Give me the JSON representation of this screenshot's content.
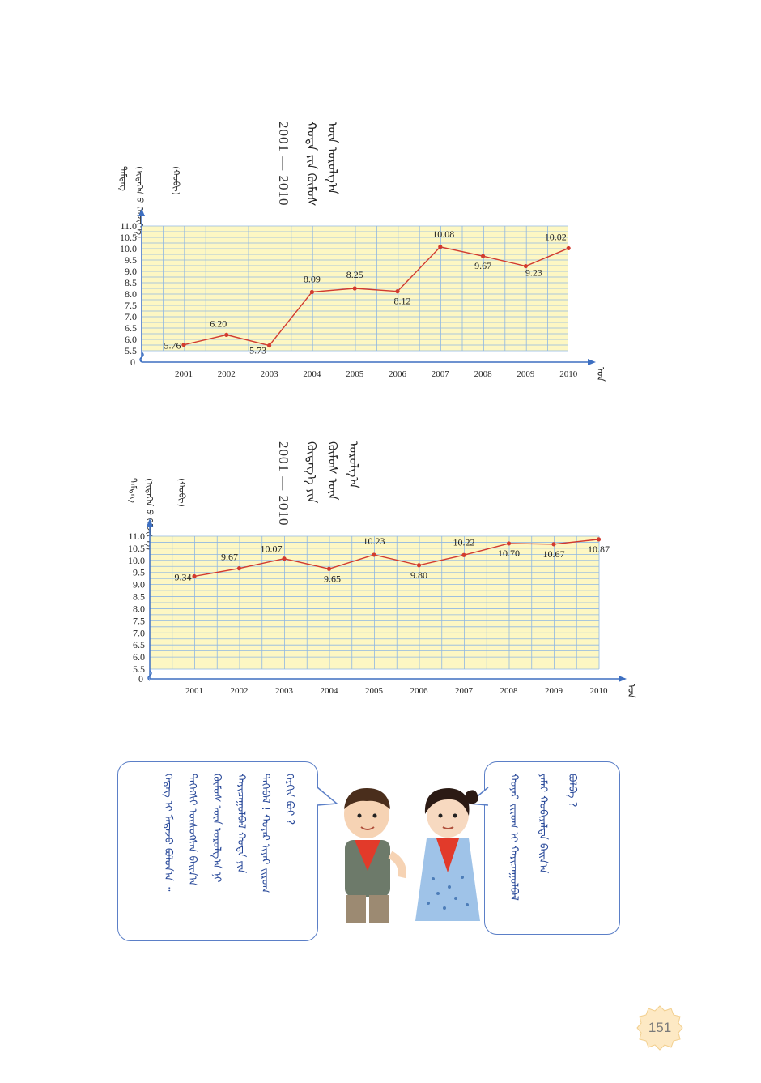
{
  "chart_data": [
    {
      "type": "line",
      "title": "ᠬᠣᠲᠠ ᠶᠢᠨ ᠬᠦᠮᠦᠰ ᠦᠨ ᠤᠷᠤᠯᠭ᠎ᠠ",
      "title_years": "2001 — 2010",
      "ylabel": "ᠲᠡᠮᠳᠡᠭ",
      "ylabel_unit": "(ᠢᠳᠡᠭᠡᠨ ᠤ᠋ ᠬᠡᠮᠵᠢᠶ᠎ᠡ)",
      "ylabel_unit2": "(ᠬᠤᠪᠢ)",
      "xlabel": "ᠣᠨ",
      "x": [
        "2001",
        "2002",
        "2003",
        "2004",
        "2005",
        "2006",
        "2007",
        "2008",
        "2009",
        "2010"
      ],
      "values": [
        5.76,
        6.2,
        5.73,
        8.09,
        8.25,
        8.12,
        10.08,
        9.67,
        9.23,
        10.02
      ],
      "labels": [
        "5.76",
        "6.20",
        "5.73",
        "8.09",
        "8.25",
        "8.12",
        "10.08",
        "9.67",
        "9.23",
        "10.02"
      ],
      "yticks": [
        "11.0",
        "10.5",
        "10.0",
        "9.5",
        "9.0",
        "8.5",
        "8.0",
        "7.5",
        "7.0",
        "6.5",
        "6.0",
        "5.5"
      ],
      "ylim": [
        5.5,
        11.0
      ],
      "grid": true,
      "origin_label": "0"
    },
    {
      "type": "line",
      "title": "ᠬᠦᠳᠡᠭ᠎ᠡ ᠶᠢᠨ ᠬᠦᠮᠦᠰ ᠦᠨ ᠤᠷᠤᠯᠭ᠎ᠠ",
      "title_years": "2001 — 2010",
      "ylabel": "ᠲᠡᠮᠳᠡᠭ",
      "ylabel_unit": "(ᠢᠳᠡᠭᠡᠨ ᠤ᠋ ᠬᠡᠮᠵᠢᠶ᠎ᠡ)",
      "ylabel_unit2": "(ᠬᠤᠪᠢ)",
      "xlabel": "ᠣᠨ",
      "x": [
        "2001",
        "2002",
        "2003",
        "2004",
        "2005",
        "2006",
        "2007",
        "2008",
        "2009",
        "2010"
      ],
      "values": [
        9.34,
        9.67,
        10.07,
        9.65,
        10.23,
        9.8,
        10.22,
        10.7,
        10.67,
        10.87
      ],
      "labels": [
        "9.34",
        "9.67",
        "10.07",
        "9.65",
        "10.23",
        "9.80",
        "10.22",
        "10.70",
        "10.67",
        "10.87"
      ],
      "yticks": [
        "11.0",
        "10.5",
        "10.0",
        "9.5",
        "9.0",
        "8.5",
        "8.0",
        "7.5",
        "7.0",
        "6.5",
        "6.0",
        "5.5"
      ],
      "ylim": [
        5.5,
        11.0
      ],
      "grid": true,
      "origin_label": "0"
    }
  ],
  "bubbles": {
    "boy": [
      "ᠬᠡᠷᠬᠢᠨ ᠪᠤᠢ ?",
      "ᠲᠡᠭᠡᠪᠡᠯ ! ᠬᠣᠶᠠᠷ ᠢᠶᠠᠷ ᠵᠢᠷᠤᠭ",
      "ᠬᠠᠷᠢᠴᠠᠭᠤᠯᠪᠠᠯ ᠬᠣᠲᠠ ᠶᠢᠨ",
      "ᠬᠦᠮᠦᠰ ᠦᠨ ᠤᠷᠤᠯᠭ᠎ᠠ ᠨᠢ",
      "ᠳᠡᠭᠡᠭᠰᠢ ᠥᠰᠦᠭᠰᠡᠨ ᠪᠠᠢᠨ᠎ᠠ",
      "ᠭᠡᠳᠡᠭ ᠢ ᠮᠡᠳᠡᠵᠦ ᠪᠣᠯᠣᠨ᠎ᠠ ᠃"
    ],
    "girl": [
      "ᠬᠣᠶᠠᠷ ᠵᠢᠷᠤᠭ ᠢ ᠬᠠᠷᠢᠴᠠᠭᠤᠯᠪᠠᠯ",
      "ᠶᠠᠮᠠᠷ ᠬᠤᠪᠢᠷᠠᠯᠲᠠ ᠪᠠᠢᠨ᠎ᠠ",
      "ᠪᠣᠯᠪᠠ ?"
    ]
  },
  "page_number": "151"
}
